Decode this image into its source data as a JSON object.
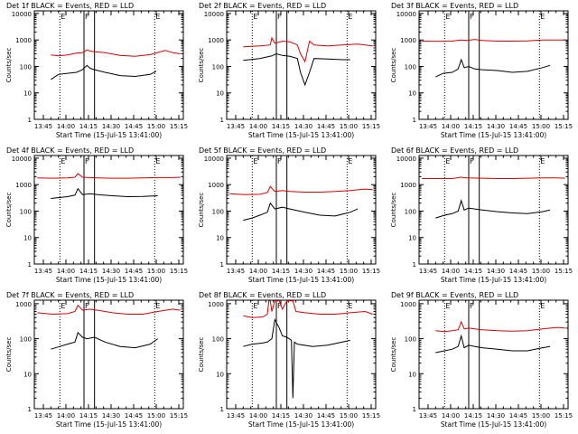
{
  "figure": {
    "x_title": "Start Time (15-Jul-15 13:41:00)",
    "y_title": "Counts/sec",
    "x_ticks": [
      "13:45",
      "14:00",
      "14:15",
      "14:30",
      "14:45",
      "15:00",
      "15:15"
    ],
    "y_ticks": [
      "1",
      "10",
      "100",
      "1000",
      "10000"
    ],
    "marker_letters": [
      "E",
      "F",
      "E"
    ],
    "colors": {
      "events": "#000000",
      "lld": "#dd0000",
      "background": "#ffffff"
    }
  },
  "chart_data": [
    {
      "type": "line",
      "title": "Det 1f BLACK = Events, RED = LLD",
      "x_range_min": [
        -2,
        97
      ],
      "ylim_log10": [
        0,
        4.1
      ],
      "ytick_labels": [
        "1",
        "10",
        "100",
        "1000",
        "10000"
      ],
      "yscale": "log",
      "dotted_x_min": [
        15,
        78
      ],
      "solid_x_min": [
        31,
        38
      ],
      "series": [
        {
          "name": "Events",
          "color": "#000000",
          "x": [
            9,
            14,
            20,
            26,
            30,
            33,
            35,
            38,
            45,
            55,
            65,
            75,
            79
          ],
          "y": [
            32,
            50,
            55,
            60,
            75,
            110,
            85,
            75,
            60,
            45,
            42,
            50,
            65
          ]
        },
        {
          "name": "LLD",
          "color": "#dd0000",
          "x": [
            9,
            14,
            20,
            26,
            30,
            33,
            35,
            38,
            45,
            55,
            65,
            75,
            85,
            90,
            95
          ],
          "y": [
            270,
            250,
            270,
            320,
            330,
            420,
            380,
            360,
            330,
            260,
            240,
            280,
            400,
            330,
            300
          ]
        }
      ]
    },
    {
      "type": "line",
      "title": "Det 2f BLACK = Events, RED = LLD",
      "x_range_min": [
        -2,
        97
      ],
      "ylim_log10": [
        0,
        4.1
      ],
      "ytick_labels": [
        "1",
        "10",
        "100",
        "1000",
        "10000"
      ],
      "yscale": "log",
      "dotted_x_min": [
        15,
        78
      ],
      "solid_x_min": [
        31,
        38
      ],
      "series": [
        {
          "name": "Events",
          "color": "#000000",
          "x": [
            9,
            20,
            28,
            31,
            35,
            40,
            45,
            47,
            50,
            53,
            56,
            65,
            75,
            80
          ],
          "y": [
            170,
            200,
            250,
            300,
            260,
            240,
            200,
            60,
            20,
            60,
            200,
            190,
            180,
            180
          ]
        },
        {
          "name": "LLD",
          "color": "#dd0000",
          "x": [
            9,
            20,
            27,
            28,
            30,
            35,
            40,
            45,
            47,
            50,
            53,
            56,
            65,
            75,
            85,
            95
          ],
          "y": [
            550,
            600,
            650,
            1200,
            750,
            900,
            850,
            650,
            300,
            150,
            900,
            650,
            600,
            650,
            700,
            600
          ]
        }
      ]
    },
    {
      "type": "line",
      "title": "Det 3f BLACK = Events, RED = LLD",
      "x_range_min": [
        -2,
        97
      ],
      "ylim_log10": [
        0,
        4.1
      ],
      "ytick_labels": [
        "1",
        "10",
        "100",
        "1000",
        "10000"
      ],
      "yscale": "log",
      "dotted_x_min": [
        15,
        78
      ],
      "solid_x_min": [
        31,
        38
      ],
      "series": [
        {
          "name": "Events",
          "color": "#000000",
          "x": [
            9,
            14,
            20,
            24,
            26,
            28,
            31,
            35,
            40,
            50,
            60,
            70,
            80,
            85
          ],
          "y": [
            40,
            55,
            60,
            80,
            180,
            90,
            100,
            80,
            75,
            70,
            60,
            65,
            90,
            110
          ]
        },
        {
          "name": "LLD",
          "color": "#dd0000",
          "x": [
            0,
            10,
            20,
            26,
            30,
            35,
            40,
            50,
            60,
            70,
            80,
            90,
            95
          ],
          "y": [
            900,
            880,
            900,
            1000,
            950,
            1050,
            950,
            900,
            900,
            920,
            1000,
            1000,
            1000
          ]
        }
      ]
    },
    {
      "type": "line",
      "title": "Det 4f BLACK = Events, RED = LLD",
      "x_range_min": [
        -2,
        97
      ],
      "ylim_log10": [
        0,
        4.1
      ],
      "ytick_labels": [
        "1",
        "10",
        "100",
        "1000",
        "10000"
      ],
      "yscale": "log",
      "dotted_x_min": [
        15,
        78
      ],
      "solid_x_min": [
        31,
        38
      ],
      "series": [
        {
          "name": "Events",
          "color": "#000000",
          "x": [
            9,
            20,
            25,
            27,
            30,
            35,
            40,
            50,
            60,
            70,
            80
          ],
          "y": [
            300,
            350,
            400,
            700,
            420,
            450,
            420,
            380,
            350,
            360,
            380
          ]
        },
        {
          "name": "LLD",
          "color": "#dd0000",
          "x": [
            0,
            10,
            20,
            25,
            27,
            30,
            40,
            50,
            60,
            70,
            80,
            90,
            95
          ],
          "y": [
            1800,
            1750,
            1800,
            1900,
            2600,
            1900,
            1800,
            1750,
            1750,
            1800,
            1850,
            1850,
            1900
          ]
        }
      ]
    },
    {
      "type": "line",
      "title": "Det 5f BLACK = Events, RED = LLD",
      "x_range_min": [
        -2,
        97
      ],
      "ylim_log10": [
        0,
        4.1
      ],
      "ytick_labels": [
        "1",
        "10",
        "100",
        "1000",
        "10000"
      ],
      "yscale": "log",
      "dotted_x_min": [
        15,
        78
      ],
      "solid_x_min": [
        31,
        38
      ],
      "series": [
        {
          "name": "Events",
          "color": "#000000",
          "x": [
            9,
            15,
            20,
            25,
            27,
            30,
            35,
            40,
            50,
            60,
            70,
            80,
            85
          ],
          "y": [
            45,
            55,
            70,
            90,
            200,
            120,
            140,
            120,
            90,
            70,
            65,
            90,
            120
          ]
        },
        {
          "name": "LLD",
          "color": "#dd0000",
          "x": [
            0,
            10,
            20,
            25,
            27,
            30,
            35,
            40,
            50,
            60,
            70,
            80,
            90,
            95
          ],
          "y": [
            450,
            420,
            430,
            500,
            850,
            550,
            600,
            550,
            520,
            520,
            550,
            600,
            680,
            650
          ]
        }
      ]
    },
    {
      "type": "line",
      "title": "Det 6f BLACK = Events, RED = LLD",
      "x_range_min": [
        -2,
        97
      ],
      "ylim_log10": [
        0,
        4.1
      ],
      "ytick_labels": [
        "1",
        "10",
        "100",
        "1000",
        "10000"
      ],
      "yscale": "log",
      "dotted_x_min": [
        15,
        78
      ],
      "solid_x_min": [
        31,
        38
      ],
      "series": [
        {
          "name": "Events",
          "color": "#000000",
          "x": [
            9,
            15,
            20,
            24,
            26,
            28,
            31,
            35,
            40,
            50,
            60,
            70,
            80,
            85
          ],
          "y": [
            55,
            70,
            80,
            100,
            250,
            110,
            130,
            120,
            110,
            95,
            85,
            80,
            95,
            110
          ]
        },
        {
          "name": "LLD",
          "color": "#dd0000",
          "x": [
            0,
            10,
            20,
            26,
            30,
            40,
            50,
            60,
            70,
            80,
            90,
            95
          ],
          "y": [
            1700,
            1700,
            1700,
            1900,
            1800,
            1750,
            1700,
            1700,
            1750,
            1800,
            1800,
            1750
          ]
        }
      ]
    },
    {
      "type": "line",
      "title": "Det 7f BLACK = Events, RED = LLD",
      "x_range_min": [
        -2,
        97
      ],
      "ylim_log10": [
        0,
        3.1
      ],
      "ytick_labels": [
        "1",
        "10",
        "100",
        "1000"
      ],
      "yscale": "log",
      "dotted_x_min": [
        15,
        78
      ],
      "solid_x_min": [
        31,
        38
      ],
      "series": [
        {
          "name": "Events",
          "color": "#000000",
          "x": [
            9,
            15,
            20,
            25,
            27,
            30,
            33,
            38,
            45,
            55,
            65,
            75,
            80
          ],
          "y": [
            50,
            60,
            70,
            80,
            150,
            110,
            100,
            110,
            80,
            60,
            55,
            70,
            100
          ]
        },
        {
          "name": "LLD",
          "color": "#dd0000",
          "x": [
            0,
            10,
            20,
            25,
            27,
            30,
            35,
            40,
            50,
            60,
            70,
            80,
            90,
            95
          ],
          "y": [
            550,
            500,
            520,
            600,
            900,
            650,
            700,
            650,
            550,
            500,
            500,
            600,
            700,
            650
          ]
        }
      ]
    },
    {
      "type": "line",
      "title": "Det 8f BLACK = Events, RED = LLD",
      "x_range_min": [
        -2,
        97
      ],
      "ylim_log10": [
        0,
        3.1
      ],
      "ytick_labels": [
        "1",
        "10",
        "100",
        "1000"
      ],
      "yscale": "log",
      "dotted_x_min": [
        15,
        78
      ],
      "solid_x_min": [
        31,
        38
      ],
      "series": [
        {
          "name": "Events",
          "color": "#000000",
          "x": [
            9,
            15,
            22,
            25,
            28,
            30,
            33,
            35,
            38,
            41,
            42,
            43,
            45,
            55,
            65,
            75,
            80
          ],
          "y": [
            60,
            70,
            75,
            80,
            100,
            350,
            200,
            120,
            110,
            90,
            2,
            80,
            70,
            60,
            65,
            80,
            90
          ]
        },
        {
          "name": "LLD",
          "color": "#dd0000",
          "x": [
            9,
            15,
            22,
            25,
            26,
            27,
            28,
            30,
            33,
            35,
            38,
            42,
            44,
            50,
            60,
            70,
            80,
            90,
            95
          ],
          "y": [
            450,
            400,
            420,
            500,
            1200,
            1200,
            600,
            1200,
            1200,
            700,
            1200,
            1200,
            600,
            550,
            500,
            500,
            550,
            600,
            500
          ]
        }
      ]
    },
    {
      "type": "line",
      "title": "Det 9f BLACK = Events, RED = LLD",
      "x_range_min": [
        -2,
        97
      ],
      "ylim_log10": [
        0,
        3.1
      ],
      "ytick_labels": [
        "1",
        "10",
        "100",
        "1000"
      ],
      "yscale": "log",
      "dotted_x_min": [
        15,
        78
      ],
      "solid_x_min": [
        31,
        38
      ],
      "series": [
        {
          "name": "Events",
          "color": "#000000",
          "x": [
            9,
            15,
            20,
            24,
            26,
            28,
            31,
            35,
            40,
            50,
            60,
            70,
            80,
            85
          ],
          "y": [
            40,
            45,
            50,
            60,
            120,
            55,
            65,
            60,
            55,
            50,
            45,
            45,
            55,
            60
          ]
        },
        {
          "name": "LLD",
          "color": "#dd0000",
          "x": [
            9,
            15,
            20,
            24,
            26,
            28,
            31,
            35,
            40,
            50,
            60,
            70,
            80,
            90,
            95
          ],
          "y": [
            170,
            160,
            170,
            180,
            300,
            190,
            200,
            190,
            180,
            170,
            165,
            170,
            190,
            210,
            200
          ]
        }
      ]
    }
  ]
}
